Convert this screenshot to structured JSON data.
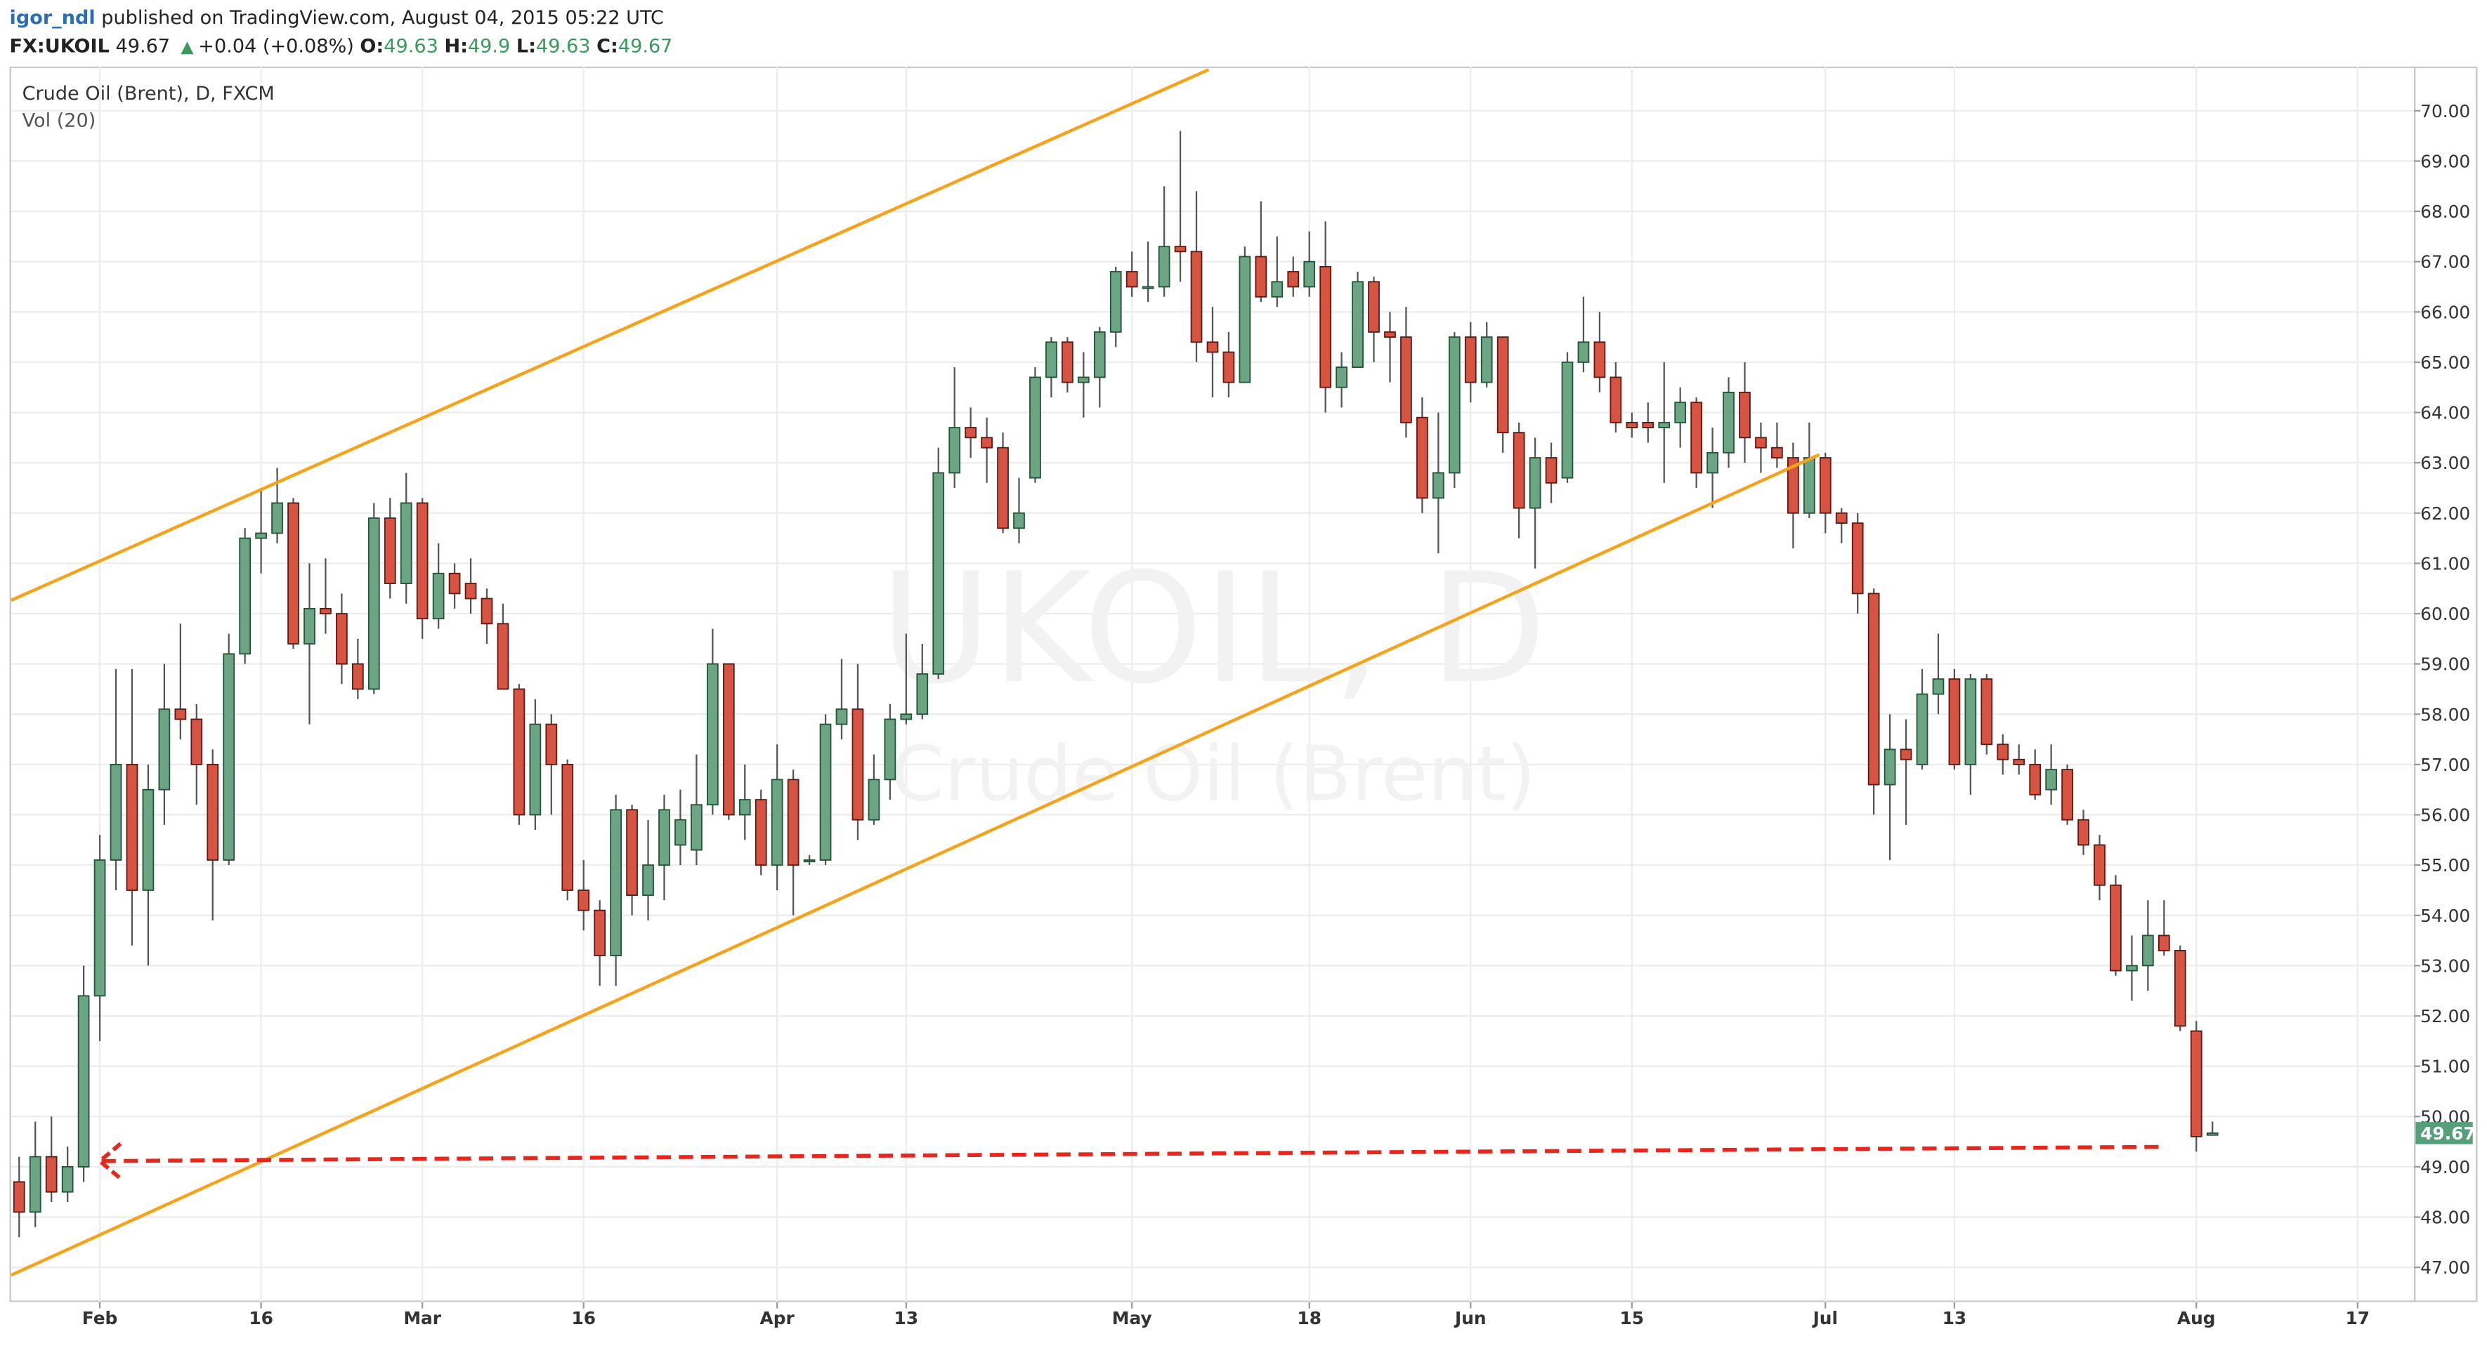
{
  "header": {
    "user": "igor_ndl",
    "published": "published on TradingView.com, August 04, 2015 05:22 UTC",
    "symbol": "FX:UKOIL",
    "change": "+0.04 (+0.08%)",
    "o_label": "O:",
    "h_label": "H:",
    "l_label": "L:",
    "c_label": "C:"
  },
  "chart_data": {
    "type": "candlestick",
    "title": "Crude Oil (Brent), D, FXCM",
    "subtitle": "Vol (20)",
    "watermark": "UKOIL, D",
    "watermark_subtitle": "Crude Oil (Brent)",
    "up_color": "#6ba583",
    "up_border": "#225437",
    "down_color": "#d75442",
    "down_border": "#5b1a13",
    "last_price_color": "#53a07a",
    "grid": true,
    "categories": [
      null,
      null,
      null,
      null,
      null,
      "Feb",
      null,
      null,
      null,
      null,
      null,
      null,
      null,
      null,
      null,
      "16",
      null,
      null,
      null,
      null,
      null,
      null,
      null,
      null,
      null,
      "Mar",
      null,
      null,
      null,
      null,
      null,
      null,
      null,
      null,
      null,
      "16",
      null,
      null,
      null,
      null,
      null,
      null,
      null,
      null,
      null,
      null,
      null,
      "Apr",
      null,
      null,
      null,
      null,
      null,
      null,
      null,
      "13",
      null,
      null,
      null,
      null,
      null,
      null,
      null,
      null,
      null,
      null,
      null,
      null,
      null,
      "May",
      null,
      null,
      null,
      null,
      null,
      null,
      null,
      null,
      null,
      null,
      "18",
      null,
      null,
      null,
      null,
      null,
      null,
      null,
      null,
      null,
      "Jun",
      null,
      null,
      null,
      null,
      null,
      null,
      null,
      null,
      null,
      "15",
      null,
      null,
      null,
      null,
      null,
      null,
      null,
      null,
      null,
      null,
      null,
      "Jul",
      null,
      null,
      null,
      null,
      null,
      null,
      null,
      "13",
      null,
      null,
      null,
      null,
      null,
      null,
      null,
      null,
      null,
      null,
      null,
      null,
      null,
      null,
      "Aug",
      null,
      null,
      null,
      null,
      null,
      null,
      null,
      null,
      null,
      "17",
      null,
      null,
      null
    ],
    "open": [
      48.7,
      48.1,
      49.2,
      48.5,
      49.0,
      52.4,
      55.1,
      57.0,
      54.5,
      56.5,
      58.1,
      57.9,
      57.0,
      55.1,
      59.2,
      61.5,
      61.6,
      62.2,
      59.4,
      60.1,
      60.0,
      59.0,
      58.5,
      61.9,
      60.6,
      62.2,
      59.9,
      60.8,
      60.6,
      60.3,
      59.8,
      58.5,
      56.0,
      57.8,
      57.0,
      54.5,
      54.1,
      53.2,
      56.1,
      54.4,
      55.0,
      55.4,
      55.3,
      56.2,
      59.0,
      56.0,
      56.3,
      55.0,
      56.7,
      55.1,
      55.1,
      57.8,
      58.1,
      55.9,
      56.7,
      57.9,
      58.0,
      58.8,
      62.8,
      63.7,
      63.5,
      63.3,
      61.7,
      62.7,
      64.7,
      65.4,
      64.6,
      64.7,
      65.6,
      66.8,
      66.5,
      66.5,
      67.3,
      67.2,
      65.4,
      65.2,
      64.6,
      67.1,
      66.3,
      66.8,
      66.5,
      66.9,
      64.5,
      64.9,
      66.6,
      65.6,
      65.5,
      63.9,
      62.3,
      62.8,
      65.5,
      64.6,
      65.5,
      63.6,
      62.1,
      63.1,
      62.7,
      65.0,
      65.4,
      64.7,
      63.8,
      63.8,
      63.7,
      63.8,
      64.2,
      62.8,
      63.2,
      64.4,
      63.5,
      63.3,
      63.1,
      62.0,
      63.1,
      62.0,
      61.8,
      60.4,
      56.6,
      57.3,
      57.0,
      58.4,
      58.7,
      57.0,
      58.7,
      57.4,
      57.1,
      57.0,
      56.5,
      56.9,
      55.9,
      55.4,
      54.6,
      52.9,
      53.0,
      53.6,
      53.3,
      51.7,
      49.63,
      null,
      null,
      null,
      null,
      null,
      null,
      null,
      null,
      null,
      null,
      null,
      null
    ],
    "high": [
      49.2,
      49.9,
      50.0,
      49.4,
      53.0,
      55.6,
      58.9,
      58.9,
      57.0,
      59.0,
      59.8,
      58.2,
      57.3,
      59.6,
      61.7,
      62.5,
      62.9,
      62.3,
      61.0,
      61.1,
      60.4,
      59.5,
      62.2,
      62.3,
      62.8,
      62.3,
      61.4,
      61.0,
      61.1,
      60.5,
      60.2,
      58.6,
      58.3,
      58.0,
      57.1,
      55.1,
      54.3,
      56.4,
      56.2,
      55.9,
      56.4,
      56.5,
      57.2,
      59.7,
      59.0,
      57.0,
      56.5,
      57.4,
      56.9,
      55.2,
      58.0,
      59.1,
      59.0,
      57.2,
      58.2,
      59.6,
      59.4,
      63.3,
      64.9,
      64.1,
      63.9,
      63.6,
      62.7,
      64.9,
      65.5,
      65.5,
      65.2,
      65.7,
      66.9,
      67.2,
      67.4,
      68.5,
      69.6,
      68.4,
      66.1,
      65.6,
      67.3,
      68.2,
      67.5,
      67.1,
      67.6,
      67.8,
      65.2,
      66.8,
      66.7,
      66.0,
      66.1,
      64.3,
      64.0,
      65.6,
      65.8,
      65.8,
      65.5,
      63.8,
      63.5,
      63.4,
      65.2,
      66.3,
      66.0,
      65.0,
      64.0,
      64.2,
      65.0,
      64.5,
      64.3,
      63.7,
      64.7,
      65.0,
      63.8,
      63.8,
      63.4,
      63.8,
      63.2,
      62.1,
      62.0,
      60.5,
      58.0,
      57.9,
      58.9,
      59.6,
      58.9,
      58.8,
      58.8,
      57.6,
      57.4,
      57.3,
      57.4,
      57.0,
      56.1,
      55.6,
      54.8,
      53.6,
      54.3,
      54.3,
      53.4,
      51.9,
      49.9,
      null,
      null,
      null,
      null,
      null,
      null,
      null,
      null,
      null,
      null,
      null,
      null
    ],
    "low": [
      47.6,
      47.8,
      48.3,
      48.3,
      48.7,
      51.5,
      54.5,
      53.4,
      53.0,
      55.8,
      57.5,
      56.2,
      53.9,
      55.0,
      59.0,
      60.8,
      61.4,
      59.3,
      57.8,
      59.6,
      58.6,
      58.3,
      58.4,
      60.3,
      60.2,
      59.5,
      59.7,
      60.1,
      60.0,
      59.4,
      58.5,
      55.8,
      55.7,
      56.0,
      54.3,
      53.7,
      52.6,
      52.6,
      54.0,
      53.9,
      54.3,
      55.0,
      55.0,
      56.0,
      55.9,
      55.5,
      54.8,
      54.5,
      54.0,
      55.0,
      55.0,
      57.5,
      55.5,
      55.8,
      56.3,
      57.8,
      57.9,
      58.7,
      62.5,
      63.1,
      62.6,
      61.6,
      61.4,
      62.6,
      64.3,
      64.4,
      63.9,
      64.1,
      65.3,
      66.3,
      66.2,
      66.3,
      66.6,
      65.0,
      64.3,
      64.3,
      64.6,
      66.2,
      66.1,
      66.3,
      66.3,
      64.0,
      64.1,
      64.9,
      65.0,
      64.6,
      63.5,
      62.0,
      61.2,
      62.5,
      64.2,
      64.5,
      63.2,
      61.5,
      60.9,
      62.2,
      62.6,
      64.8,
      64.4,
      63.6,
      63.5,
      63.4,
      62.6,
      63.3,
      62.5,
      62.1,
      62.9,
      63.0,
      62.8,
      62.9,
      61.3,
      61.9,
      61.6,
      61.4,
      60.0,
      56.0,
      55.1,
      55.8,
      56.9,
      58.0,
      56.9,
      56.4,
      57.2,
      56.8,
      56.8,
      56.3,
      56.2,
      55.8,
      55.2,
      54.3,
      52.8,
      52.3,
      52.5,
      53.2,
      51.7,
      49.3,
      49.63,
      null,
      null,
      null,
      null,
      null,
      null,
      null,
      null,
      null,
      null,
      null,
      null
    ],
    "close": [
      48.1,
      49.2,
      48.5,
      49.0,
      52.4,
      55.1,
      57.0,
      54.5,
      56.5,
      58.1,
      57.9,
      57.0,
      55.1,
      59.2,
      61.5,
      61.6,
      62.2,
      59.4,
      60.1,
      60.0,
      59.0,
      58.5,
      61.9,
      60.6,
      62.2,
      59.9,
      60.8,
      60.4,
      60.3,
      59.8,
      58.5,
      56.0,
      57.8,
      57.0,
      54.5,
      54.1,
      53.2,
      56.1,
      54.4,
      55.0,
      56.1,
      55.9,
      56.2,
      59.0,
      56.0,
      56.3,
      55.0,
      56.7,
      55.0,
      55.1,
      57.8,
      58.1,
      55.9,
      56.7,
      57.9,
      58.0,
      58.8,
      62.8,
      63.7,
      63.5,
      63.3,
      61.7,
      62.0,
      64.7,
      65.4,
      64.6,
      64.7,
      65.6,
      66.8,
      66.5,
      66.5,
      67.3,
      67.2,
      65.4,
      65.2,
      64.6,
      67.1,
      66.3,
      66.6,
      66.5,
      67.0,
      64.5,
      64.9,
      66.6,
      65.6,
      65.5,
      63.8,
      62.3,
      62.8,
      65.5,
      64.6,
      65.5,
      63.6,
      62.1,
      63.1,
      62.6,
      65.0,
      65.4,
      64.7,
      63.8,
      63.7,
      63.7,
      63.8,
      64.2,
      62.8,
      63.2,
      64.4,
      63.5,
      63.3,
      63.1,
      62.0,
      63.1,
      62.0,
      61.8,
      60.4,
      56.6,
      57.3,
      57.1,
      58.4,
      58.7,
      57.0,
      58.7,
      57.4,
      57.1,
      57.0,
      56.4,
      56.9,
      55.9,
      55.4,
      54.6,
      52.9,
      53.0,
      53.6,
      53.3,
      51.8,
      49.6,
      49.67,
      null,
      null,
      null,
      null,
      null,
      null,
      null,
      null,
      null,
      null,
      null,
      null
    ],
    "ylim": [
      46.31,
      70.88
    ],
    "yticks": [
      {
        "value": 47,
        "label": "47.00"
      },
      {
        "value": 48,
        "label": "48.00"
      },
      {
        "value": 49,
        "label": "49.00"
      },
      {
        "value": 50,
        "label": "50.00"
      },
      {
        "value": 51,
        "label": "51.00"
      },
      {
        "value": 52,
        "label": "52.00"
      },
      {
        "value": 53,
        "label": "53.00"
      },
      {
        "value": 54,
        "label": "54.00"
      },
      {
        "value": 55,
        "label": "55.00"
      },
      {
        "value": 56,
        "label": "56.00"
      },
      {
        "value": 57,
        "label": "57.00"
      },
      {
        "value": 58,
        "label": "58.00"
      },
      {
        "value": 59,
        "label": "59.00"
      },
      {
        "value": 60,
        "label": "60.00"
      },
      {
        "value": 61,
        "label": "61.00"
      },
      {
        "value": 62,
        "label": "62.00"
      },
      {
        "value": 63,
        "label": "63.00"
      },
      {
        "value": 64,
        "label": "64.00"
      },
      {
        "value": 65,
        "label": "65.00"
      },
      {
        "value": 66,
        "label": "66.00"
      },
      {
        "value": 67,
        "label": "67.00"
      },
      {
        "value": 68,
        "label": "68.00"
      },
      {
        "value": 69,
        "label": "69.00"
      },
      {
        "value": 70,
        "label": "70.00"
      }
    ]
  }
}
